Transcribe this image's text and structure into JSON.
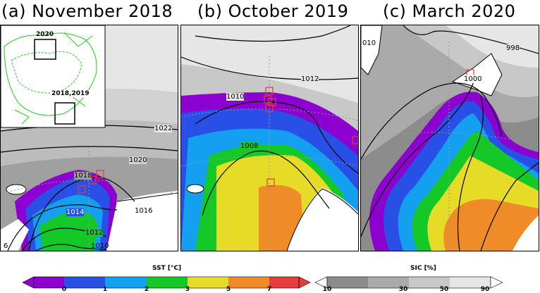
{
  "panels": [
    {
      "title": "(a) November 2018",
      "isobars": [
        "1022",
        "1020",
        "1018",
        "1016",
        "1014",
        "1012",
        "1010",
        "6"
      ],
      "inset": {
        "labels": [
          "2020",
          "2018,2019"
        ]
      }
    },
    {
      "title": "(b) October 2019",
      "isobars": [
        "1012",
        "1010",
        "1008"
      ]
    },
    {
      "title": "(c) March 2020",
      "isobars": [
        "010",
        "998",
        "1000"
      ]
    }
  ],
  "colorbars": {
    "sst": {
      "title": "SST [°C]",
      "ticks": [
        "0",
        "1",
        "2",
        "3",
        "5",
        "7"
      ],
      "colors": [
        "#8c00d0",
        "#2850e6",
        "#14a0f0",
        "#14c828",
        "#e6dc28",
        "#f08c28",
        "#e63c3c"
      ]
    },
    "sic": {
      "title": "SIC [%]",
      "ticks": [
        "10",
        "30",
        "50",
        "90"
      ],
      "colors": [
        "#ffffff",
        "#8c8c8c",
        "#aaaaaa",
        "#c8c8c8",
        "#e6e6e6"
      ]
    }
  },
  "colors": {
    "sst_purple": "#8c00d0",
    "sst_blue": "#2850e6",
    "sst_cyan": "#14a0f0",
    "sst_green": "#14c828",
    "sst_yellow": "#e6dc28",
    "sst_orange": "#f08c28",
    "marker_red": "#e63c3c",
    "coast_green": "#22cc22"
  }
}
